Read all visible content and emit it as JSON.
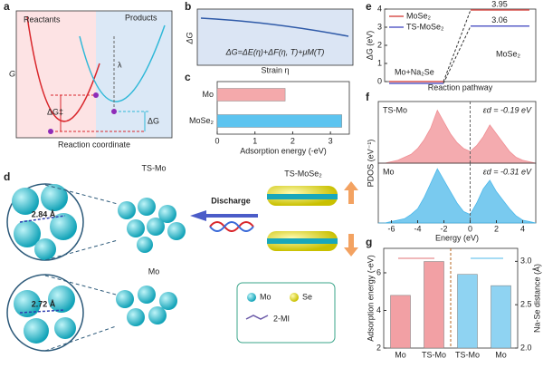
{
  "panels": [
    "a",
    "b",
    "c",
    "d",
    "e",
    "f",
    "g"
  ],
  "diagram_a": {
    "reactants": "Reactants",
    "products": "Products",
    "ylabel": "G",
    "xlabel": "Reaction coordinate",
    "barrier": "ΔG‡",
    "lambda": "λ",
    "dg": "ΔG"
  },
  "diagram_b": {
    "ylabel": "ΔG",
    "xlabel": "Strain η",
    "equation": "ΔG=ΔE(η)+ΔF(η, T)+μM(T)"
  },
  "diagram_d": {
    "ts_mo": "TS-Mo",
    "ts_mose2": "TS-MoSe₂",
    "discharge": "Discharge",
    "mo": "Mo",
    "dist1": "2.84 Å",
    "dist2": "2.72 Å",
    "legend": [
      "Mo",
      "Se",
      "2-MI"
    ]
  },
  "chart_data": [
    {
      "type": "barh",
      "categories": [
        "Mo",
        "MoSe₂"
      ],
      "values": [
        1.8,
        3.3
      ],
      "colors": [
        "#f4a9ab",
        "#5cc4f0"
      ],
      "xlim": [
        0,
        3.5
      ],
      "xticks": [
        0,
        1,
        2,
        3
      ],
      "xlabel": "Adsorption energy (-eV)"
    },
    {
      "type": "step",
      "ylabel": "ΔG (eV)",
      "xlabel": "Reaction pathway",
      "ylim": [
        0,
        4
      ],
      "yticks": [
        0,
        1,
        2,
        3,
        4
      ],
      "series": [
        {
          "name": "MoSe₂",
          "color": "#d9534f",
          "values": [
            0,
            3.95
          ]
        },
        {
          "name": "TS-MoSe₂",
          "color": "#5a5fc8",
          "values": [
            0,
            3.06
          ]
        }
      ],
      "annotation": "Mo+Na₂Se",
      "structure_label": "MoSe₂"
    },
    {
      "type": "area",
      "ylabel": "PDOS (eV⁻¹)",
      "xlabel": "Energy (eV)",
      "xlim": [
        -7,
        5
      ],
      "xticks": [
        -6,
        -4,
        -2,
        0,
        2,
        4
      ],
      "ylim": [
        0,
        42
      ],
      "x": [
        -7,
        -6.5,
        -6,
        -5.5,
        -5,
        -4.5,
        -4,
        -3.5,
        -3,
        -2.5,
        -2,
        -1.5,
        -1,
        -0.5,
        0,
        0.5,
        1,
        1.5,
        2,
        2.5,
        3,
        3.5,
        4,
        4.5,
        5
      ],
      "series": [
        {
          "name": "TS-Mo",
          "color": "#f08f94",
          "values": [
            0,
            0,
            1,
            2,
            4,
            6,
            10,
            16,
            24,
            36,
            28,
            20,
            14,
            10,
            8,
            12,
            18,
            26,
            20,
            14,
            8,
            4,
            2,
            1,
            0
          ]
        },
        {
          "name": "Mo",
          "color": "#4cb8ea",
          "values": [
            0,
            0,
            1,
            2,
            3,
            6,
            10,
            18,
            28,
            38,
            30,
            22,
            14,
            8,
            6,
            14,
            24,
            30,
            22,
            16,
            10,
            5,
            2,
            1,
            0
          ]
        }
      ],
      "annotations": [
        "εd = -0.19 eV",
        "εd = -0.31 eV"
      ]
    },
    {
      "type": "bar",
      "categories": [
        "Mo",
        "TS-Mo",
        "TS-Mo",
        "Mo"
      ],
      "ylabel": "Adsorption energy (-eV)",
      "y2label": "Na-Se distance (Å)",
      "ylim": [
        2,
        7.3
      ],
      "yticks": [
        2,
        4,
        6
      ],
      "y2lim": [
        2.0,
        3.15
      ],
      "y2ticks": [
        {
          "value": 2.0,
          "label": "2.0"
        },
        {
          "value": 2.5,
          "label": "2.5"
        },
        {
          "value": 3.0,
          "label": "3.0"
        }
      ],
      "series": [
        {
          "color": "#f2a0a4",
          "values": [
            4.8,
            6.6,
            null,
            null
          ]
        },
        {
          "color": "#8fd3f2",
          "axis": "y2",
          "values": [
            null,
            null,
            2.85,
            2.72
          ]
        }
      ]
    }
  ]
}
